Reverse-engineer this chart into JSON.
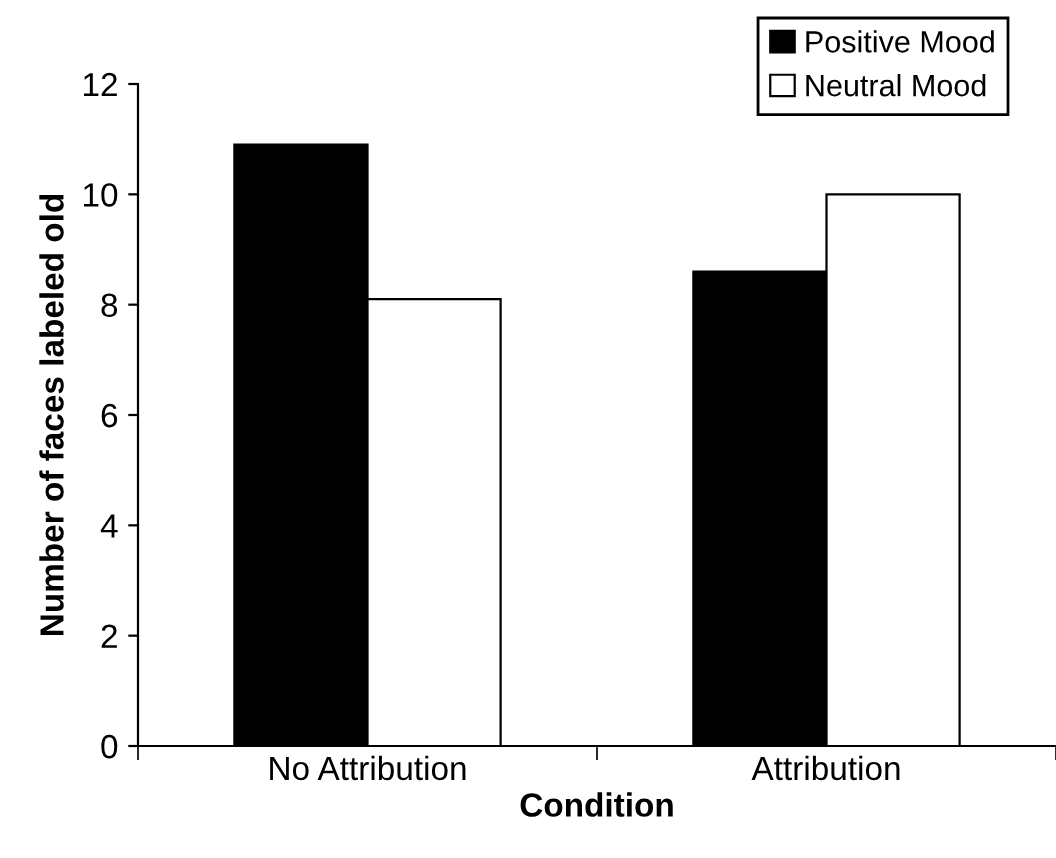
{
  "chart_data": {
    "type": "bar",
    "xlabel": "Condition",
    "ylabel": "Number of faces labeled old",
    "categories": [
      "No Attribution",
      "Attribution"
    ],
    "series": [
      {
        "name": "Positive Mood",
        "color": "#000000",
        "values": [
          10.9,
          8.6
        ]
      },
      {
        "name": "Neutral Mood",
        "color": "#ffffff",
        "values": [
          8.1,
          10.0
        ]
      }
    ],
    "ylim": [
      0,
      12
    ],
    "yticks": [
      0,
      2,
      4,
      6,
      8,
      10,
      12
    ],
    "grid": false,
    "legend": "top right"
  }
}
